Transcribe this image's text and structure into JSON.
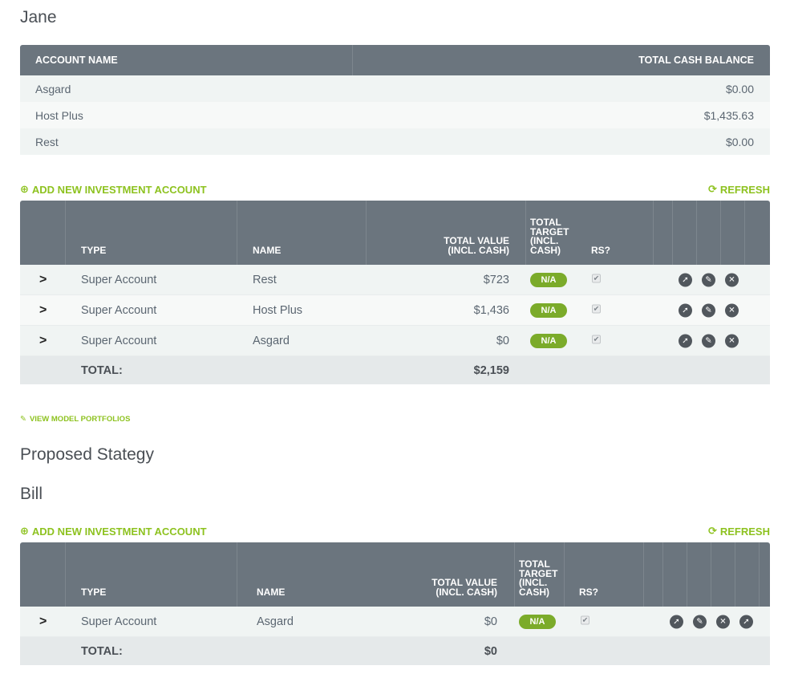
{
  "client1": {
    "name": "Jane",
    "cash_table": {
      "headers": {
        "account_name": "ACCOUNT NAME",
        "total_cash": "TOTAL CASH BALANCE"
      },
      "rows": [
        {
          "account": "Asgard",
          "balance": "$0.00"
        },
        {
          "account": "Host Plus",
          "balance": "$1,435.63"
        },
        {
          "account": "Rest",
          "balance": "$0.00"
        }
      ]
    },
    "add_link": "ADD NEW INVESTMENT ACCOUNT",
    "refresh_link": "REFRESH",
    "inv_table": {
      "headers": {
        "type": "TYPE",
        "name": "NAME",
        "total_value_1": "TOTAL VALUE",
        "total_value_2": "(INCL. CASH)",
        "target_1": "TOTAL",
        "target_2": "TARGET",
        "target_3": "(INCL.",
        "target_4": "CASH)",
        "rs": "RS?"
      },
      "rows": [
        {
          "chevron": ">",
          "type": "Super Account",
          "name": "Rest",
          "value": "$723",
          "target": "N/A"
        },
        {
          "chevron": ">",
          "type": "Super Account",
          "name": "Host Plus",
          "value": "$1,436",
          "target": "N/A"
        },
        {
          "chevron": ">",
          "type": "Super Account",
          "name": "Asgard",
          "value": "$0",
          "target": "N/A"
        }
      ],
      "total_label": "TOTAL:",
      "total_value": "$2,159"
    }
  },
  "view_models_link": "VIEW MODEL PORTFOLIOS",
  "proposed_heading": "Proposed Stategy",
  "client2": {
    "name": "Bill",
    "add_link": "ADD NEW INVESTMENT ACCOUNT",
    "refresh_link": "REFRESH",
    "inv_table": {
      "headers": {
        "type": "TYPE",
        "name": "NAME",
        "total_value_1": "TOTAL VALUE",
        "total_value_2": "(INCL. CASH)",
        "target_1": "TOTAL",
        "target_2": "TARGET",
        "target_3": "(INCL.",
        "target_4": "CASH)",
        "rs": "RS?"
      },
      "rows": [
        {
          "chevron": ">",
          "type": "Super Account",
          "name": "Asgard",
          "value": "$0",
          "target": "N/A"
        }
      ],
      "total_label": "TOTAL:",
      "total_value": "$0"
    }
  },
  "icons": {
    "add": "plus-circle-icon",
    "refresh": "refresh-icon",
    "view": "pencil-icon",
    "row_actions": [
      "share-icon",
      "edit-icon",
      "delete-icon"
    ],
    "row_actions_bill": [
      "share-icon",
      "edit-icon",
      "delete-icon",
      "share-icon"
    ]
  },
  "colors": {
    "header_bg": "#6b757e",
    "accent_green": "#8dc21f",
    "badge_green": "#7bab2a"
  }
}
